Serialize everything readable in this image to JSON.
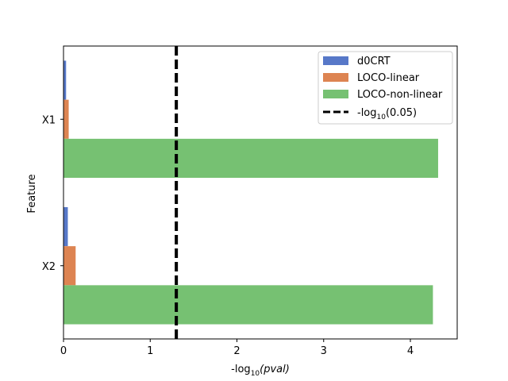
{
  "chart_data": {
    "type": "bar",
    "orientation": "horizontal",
    "categories": [
      "X1",
      "X2"
    ],
    "series": [
      {
        "name": "d0CRT",
        "values": [
          0.03,
          0.05
        ],
        "color": "#5778c8"
      },
      {
        "name": "LOCO-linear",
        "values": [
          0.06,
          0.14
        ],
        "color": "#dd8452"
      },
      {
        "name": "LOCO-non-linear",
        "values": [
          4.32,
          4.26
        ],
        "color": "#76c172"
      }
    ],
    "reference_line": {
      "label_prefix": "-log",
      "label_sub": "10",
      "label_suffix": "(0.05)",
      "value": 1.301,
      "style": "dashed",
      "color": "#000000"
    },
    "xlabel": {
      "prefix": "-log",
      "sub": "10",
      "suffix": "(pval)"
    },
    "ylabel": "Feature",
    "xlim": [
      0,
      4.54
    ],
    "xticks": [
      "0",
      "1",
      "2",
      "3",
      "4"
    ],
    "grid": false,
    "legend_position": "top-right"
  }
}
